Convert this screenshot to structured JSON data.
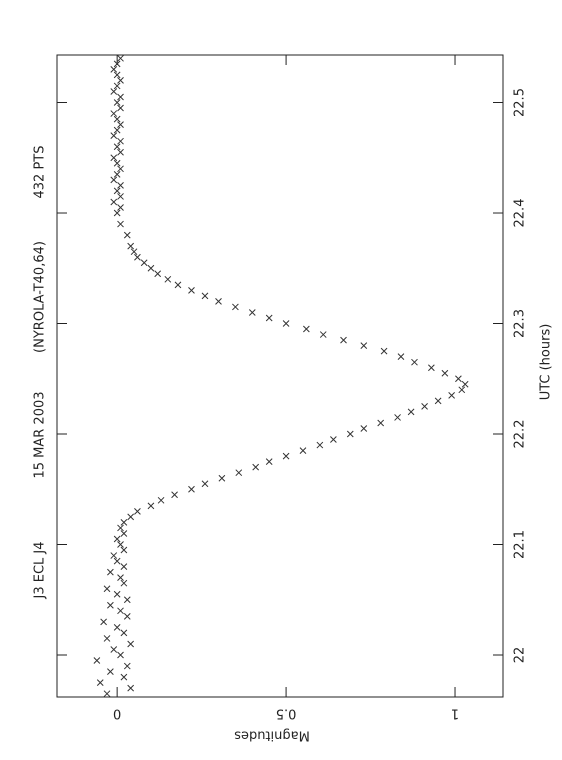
{
  "chart_data": {
    "type": "scatter",
    "title": "J3 ECL J4",
    "date": "15 MAR 2003",
    "site": "(NYROLA-T40,64)",
    "points_label": "432 PTS",
    "x_label": "UTC (hours)",
    "y_label": "Magnitudes",
    "x": [
      21.965,
      21.97,
      21.975,
      21.98,
      21.985,
      21.99,
      21.995,
      22.0,
      22.005,
      22.01,
      22.015,
      22.02,
      22.025,
      22.03,
      22.035,
      22.04,
      22.045,
      22.05,
      22.055,
      22.06,
      22.065,
      22.07,
      22.075,
      22.08,
      22.085,
      22.09,
      22.095,
      22.1,
      22.105,
      22.11,
      22.115,
      22.12,
      22.125,
      22.13,
      22.135,
      22.14,
      22.145,
      22.15,
      22.155,
      22.16,
      22.165,
      22.17,
      22.175,
      22.18,
      22.185,
      22.19,
      22.195,
      22.2,
      22.205,
      22.21,
      22.215,
      22.22,
      22.225,
      22.23,
      22.235,
      22.24,
      22.245,
      22.25,
      22.255,
      22.26,
      22.265,
      22.27,
      22.275,
      22.28,
      22.285,
      22.29,
      22.295,
      22.3,
      22.305,
      22.31,
      22.315,
      22.32,
      22.325,
      22.33,
      22.335,
      22.34,
      22.345,
      22.35,
      22.355,
      22.36,
      22.365,
      22.37,
      22.38,
      22.39,
      22.4,
      22.405,
      22.41,
      22.415,
      22.42,
      22.425,
      22.43,
      22.435,
      22.44,
      22.445,
      22.45,
      22.455,
      22.46,
      22.465,
      22.47,
      22.475,
      22.48,
      22.485,
      22.49,
      22.495,
      22.5,
      22.505,
      22.51,
      22.515,
      22.52,
      22.525,
      22.53,
      22.535,
      22.54
    ],
    "values": [
      -0.03,
      0.04,
      -0.05,
      0.02,
      -0.02,
      0.03,
      -0.06,
      0.01,
      -0.01,
      0.04,
      -0.03,
      0.02,
      0.0,
      -0.04,
      0.03,
      0.01,
      -0.02,
      0.03,
      0.0,
      -0.03,
      0.02,
      0.01,
      -0.02,
      0.02,
      0.0,
      -0.01,
      0.02,
      0.01,
      0.0,
      0.02,
      0.01,
      0.02,
      0.04,
      0.06,
      0.1,
      0.13,
      0.17,
      0.22,
      0.26,
      0.31,
      0.36,
      0.41,
      0.45,
      0.5,
      0.55,
      0.6,
      0.64,
      0.69,
      0.73,
      0.78,
      0.83,
      0.87,
      0.91,
      0.95,
      0.99,
      1.02,
      1.03,
      1.01,
      0.97,
      0.93,
      0.88,
      0.84,
      0.79,
      0.73,
      0.67,
      0.61,
      0.56,
      0.5,
      0.45,
      0.4,
      0.35,
      0.3,
      0.26,
      0.22,
      0.18,
      0.15,
      0.12,
      0.1,
      0.08,
      0.06,
      0.05,
      0.04,
      0.03,
      0.01,
      0.0,
      0.01,
      -0.01,
      0.01,
      0.0,
      0.01,
      -0.01,
      0.0,
      0.01,
      0.0,
      -0.01,
      0.01,
      0.0,
      0.01,
      -0.01,
      0.0,
      0.01,
      0.0,
      -0.01,
      0.01,
      0.0,
      0.01,
      -0.01,
      0.0,
      0.01,
      0.0,
      -0.01,
      0.0,
      0.01
    ],
    "color": "#333333",
    "xlim": [
      21.962,
      22.543
    ],
    "xticks": [
      22,
      22.1,
      22.2,
      22.3,
      22.4,
      22.5
    ],
    "ylim": [
      -0.178,
      1.142
    ],
    "yticks": [
      0,
      0.5,
      1
    ]
  }
}
